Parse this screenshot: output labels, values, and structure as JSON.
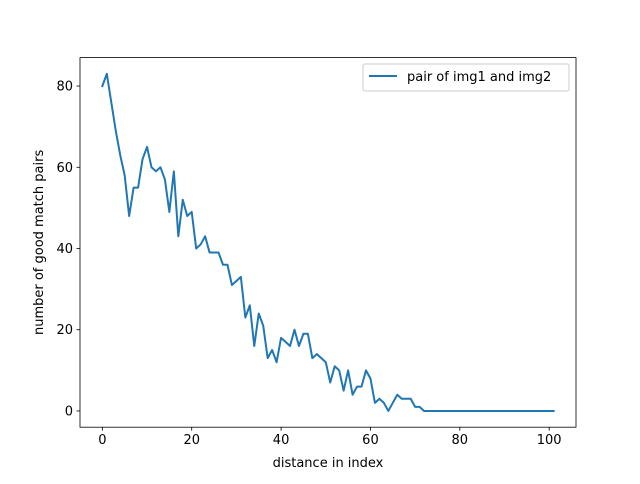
{
  "chart_data": {
    "type": "line",
    "title": "",
    "xlabel": "distance in index",
    "ylabel": "number of good match pairs",
    "xlim": [
      -5,
      106
    ],
    "ylim": [
      -4,
      87
    ],
    "xticks": [
      0,
      20,
      40,
      60,
      80,
      100
    ],
    "yticks": [
      0,
      20,
      40,
      60,
      80
    ],
    "grid": false,
    "legend_position": "top-right",
    "series": [
      {
        "name": "pair of img1 and img2",
        "color": "#1f77b4",
        "x": [
          0,
          1,
          2,
          3,
          4,
          5,
          6,
          7,
          8,
          9,
          10,
          11,
          12,
          13,
          14,
          15,
          16,
          17,
          18,
          19,
          20,
          21,
          22,
          23,
          24,
          25,
          26,
          27,
          28,
          29,
          30,
          31,
          32,
          33,
          34,
          35,
          36,
          37,
          38,
          39,
          40,
          41,
          42,
          43,
          44,
          45,
          46,
          47,
          48,
          49,
          50,
          51,
          52,
          53,
          54,
          55,
          56,
          57,
          58,
          59,
          60,
          61,
          62,
          63,
          64,
          65,
          66,
          67,
          68,
          69,
          70,
          71,
          72,
          73,
          74,
          75,
          76,
          77,
          78,
          79,
          80,
          81,
          82,
          83,
          84,
          85,
          86,
          87,
          88,
          89,
          90,
          91,
          92,
          93,
          94,
          95,
          96,
          97,
          98,
          99,
          100,
          101
        ],
        "y": [
          80,
          83,
          76,
          69,
          63,
          58,
          48,
          55,
          55,
          62,
          65,
          60,
          59,
          60,
          57,
          49,
          59,
          43,
          52,
          48,
          49,
          40,
          41,
          43,
          39,
          39,
          39,
          36,
          36,
          31,
          32,
          33,
          23,
          26,
          16,
          24,
          21,
          13,
          15,
          12,
          18,
          17,
          16,
          20,
          16,
          19,
          19,
          13,
          14,
          13,
          12,
          7,
          11,
          10,
          5,
          10,
          4,
          6,
          6,
          10,
          8,
          2,
          3,
          2,
          0,
          2,
          4,
          3,
          3,
          3,
          1,
          1,
          0,
          0,
          0,
          0,
          0,
          0,
          0,
          0,
          0,
          0,
          0,
          0,
          0,
          0,
          0,
          0,
          0,
          0,
          0,
          0,
          0,
          0,
          0,
          0,
          0,
          0,
          0,
          0,
          0,
          0
        ]
      }
    ]
  }
}
